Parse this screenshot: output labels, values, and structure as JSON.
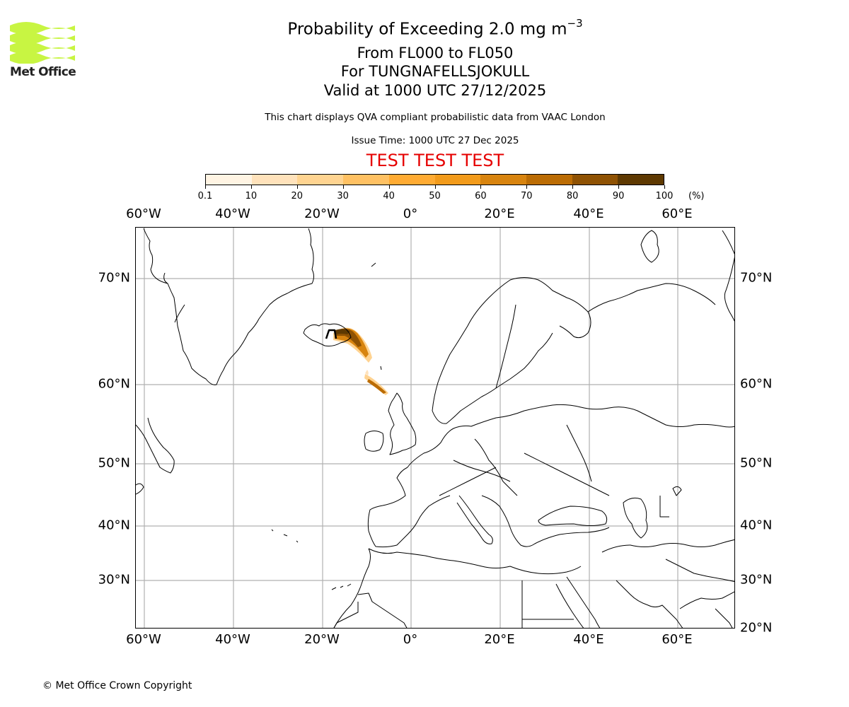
{
  "logo": {
    "text": "Met Office",
    "color": "#c8f542"
  },
  "title": {
    "main_prefix": "Probability of Exceeding 2.0 mg m",
    "main_superscript": "−3",
    "levels": "From FL000 to FL050",
    "volcano": "For TUNGNAFELLSJOKULL",
    "valid": "Valid at 1000 UTC 27/12/2025",
    "disclaimer": "This chart displays QVA compliant probabilistic data from VAAC London",
    "issue_time": "Issue Time: 1000 UTC 27 Dec 2025",
    "test_banner": "TEST TEST TEST",
    "test_color": "#e60000"
  },
  "colorbar": {
    "unit_label": "(%)",
    "tick_labels": [
      "0.1",
      "10",
      "20",
      "30",
      "40",
      "50",
      "60",
      "70",
      "80",
      "90",
      "100"
    ],
    "colors": [
      "#fff4e3",
      "#ffe2bb",
      "#ffd491",
      "#ffc163",
      "#ffab33",
      "#f29b1b",
      "#d8840f",
      "#bb6c04",
      "#8f5203",
      "#5e3901"
    ]
  },
  "axes": {
    "lon_labels": [
      "60°W",
      "40°W",
      "20°W",
      "0°",
      "20°E",
      "40°E",
      "60°E"
    ],
    "lat_labels_left": [
      "70°N",
      "60°N",
      "50°N",
      "40°N",
      "30°N"
    ],
    "lat_labels_right": [
      "70°N",
      "60°N",
      "50°N",
      "40°N",
      "30°N",
      "20°N"
    ],
    "grid_color": "#b0b0b0"
  },
  "chart_data": {
    "type": "heatmap",
    "title": "Probability of Exceeding 2.0 mg m−3",
    "subtitle": "From FL000 to FL050 / For TUNGNAFELLSJOKULL / Valid at 1000 UTC 27/12/2025",
    "colorbar_bounds": [
      0.1,
      10,
      20,
      30,
      40,
      50,
      60,
      70,
      80,
      90,
      100
    ],
    "colorbar_unit": "%",
    "extent": {
      "lon": [
        -62,
        73
      ],
      "lat": [
        20,
        76
      ]
    },
    "xticks": [
      "60°W",
      "40°W",
      "20°W",
      "0°",
      "20°E",
      "40°E",
      "60°E"
    ],
    "yticks": [
      "20°N",
      "30°N",
      "40°N",
      "50°N",
      "60°N",
      "70°N"
    ],
    "grid": true,
    "plume_description": "Ash probability plume extending from central-east Iceland (~65N 17W, 90-100%) southeast over the Faroe Islands towards north of Scotland (~59N 5W, 30-70%)"
  },
  "footer": {
    "copyright": "© Met Office Crown Copyright"
  }
}
